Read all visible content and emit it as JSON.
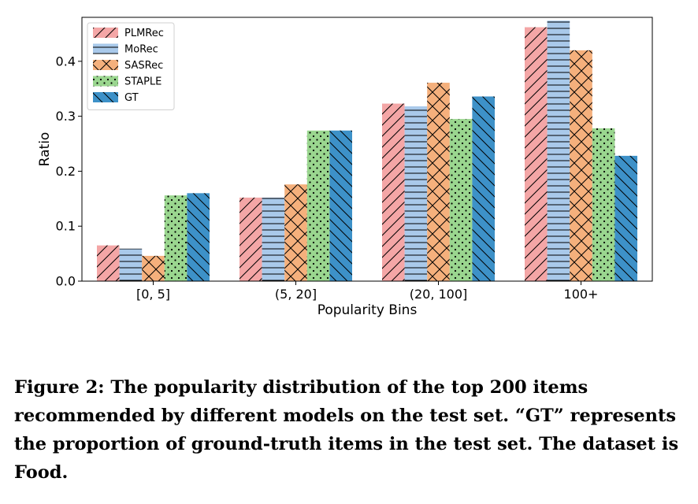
{
  "chart_data": {
    "type": "bar",
    "categories": [
      "[0, 5]",
      "(5, 20]",
      "(20, 100]",
      "100+"
    ],
    "series": [
      {
        "name": "PLMRec",
        "values": [
          0.065,
          0.152,
          0.323,
          0.462
        ],
        "color": "#f4a6a6",
        "hatch": "diagonal-forward"
      },
      {
        "name": "MoRec",
        "values": [
          0.059,
          0.152,
          0.318,
          0.474
        ],
        "color": "#a9c9ea",
        "hatch": "horizontal"
      },
      {
        "name": "SASRec",
        "values": [
          0.046,
          0.176,
          0.361,
          0.42
        ],
        "color": "#f5b07c",
        "hatch": "crosshatch"
      },
      {
        "name": "STAPLE",
        "values": [
          0.156,
          0.274,
          0.295,
          0.278
        ],
        "color": "#9ad68f",
        "hatch": "dots"
      },
      {
        "name": "GT",
        "values": [
          0.16,
          0.274,
          0.336,
          0.228
        ],
        "color": "#3d91c8",
        "hatch": "diagonal-back"
      }
    ],
    "xlabel": "Popularity Bins",
    "ylabel": "Ratio",
    "ylim": [
      0.0,
      0.48
    ],
    "yticks": [
      0.0,
      0.1,
      0.2,
      0.3,
      0.4
    ],
    "ytick_labels": [
      "0.0",
      "0.1",
      "0.2",
      "0.3",
      "0.4"
    ],
    "grid": false,
    "legend_position": "top-left"
  },
  "caption": "Figure 2: The popularity distribution of the top 200 items recommended by different models on the test set. “GT” represents the proportion of ground-truth items in the test set. The dataset is Food."
}
